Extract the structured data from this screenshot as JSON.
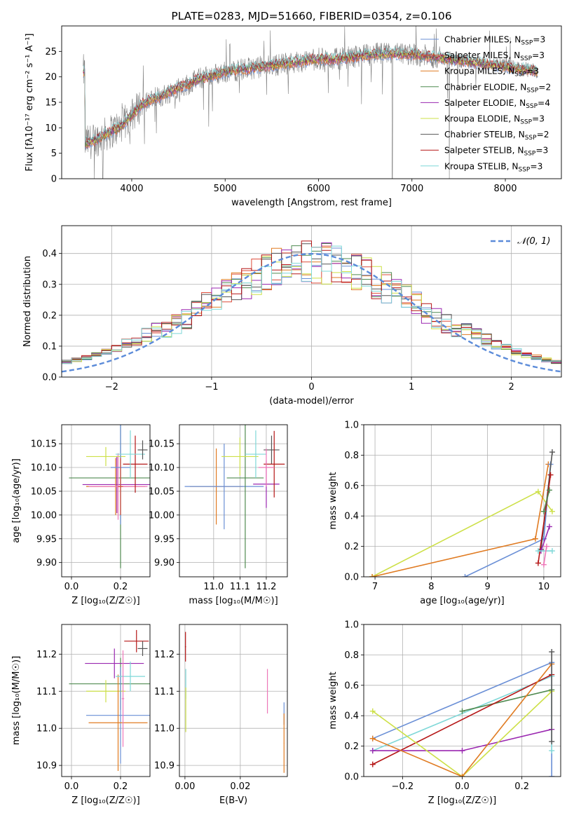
{
  "colors": {
    "chabrier_miles": "#6a8fd6",
    "salpeter_miles": "#dd4b39",
    "kroupa_miles": "#e07b22",
    "chabrier_elodie": "#4f8a50",
    "salpeter_elodie": "#9a27b0",
    "kroupa_elodie": "#cde048",
    "chabrier_stelib": "#555555",
    "salpeter_stelib": "#b51616",
    "kroupa_stelib": "#7fd8d8",
    "gaussian": "#5b8bd9",
    "pink": "#ee77b8",
    "grid": "#b0b0b0",
    "observed_spectrum": "#808080"
  },
  "chart_data": [
    {
      "id": "spectrum",
      "type": "line",
      "title": "PLATE=0283, MJD=51660, FIBERID=0354, z=0.106",
      "xlabel": "wavelength [Angstrom, rest frame]",
      "ylabel": "Flux [fλ10⁻¹⁷ erg cm⁻² s⁻¹ A⁻¹]",
      "xlim": [
        3250,
        8600
      ],
      "ylim": [
        0,
        30
      ],
      "xticks": [
        "4000",
        "5000",
        "6000",
        "7000",
        "8000"
      ],
      "yticks": [
        "0",
        "5",
        "10",
        "15",
        "20",
        "25"
      ],
      "grid": false,
      "legend_position": "right",
      "legend": [
        {
          "label": "Chabrier MILES, N",
          "sub": "SSP",
          "suffix": "=3",
          "color_key": "chabrier_miles"
        },
        {
          "label": "Salpeter MILES, N",
          "sub": "SSP",
          "suffix": "=3",
          "color_key": "salpeter_miles"
        },
        {
          "label": "Kroupa MILES, N",
          "sub": "SSP",
          "suffix": "=3",
          "color_key": "kroupa_miles"
        },
        {
          "label": "Chabrier ELODIE, N",
          "sub": "SSP",
          "suffix": "=2",
          "color_key": "chabrier_elodie"
        },
        {
          "label": "Salpeter ELODIE, N",
          "sub": "SSP",
          "suffix": "=4",
          "color_key": "salpeter_elodie"
        },
        {
          "label": "Kroupa ELODIE, N",
          "sub": "SSP",
          "suffix": "=3",
          "color_key": "kroupa_elodie"
        },
        {
          "label": "Chabrier STELIB, N",
          "sub": "SSP",
          "suffix": "=2",
          "color_key": "chabrier_stelib"
        },
        {
          "label": "Salpeter STELIB, N",
          "sub": "SSP",
          "suffix": "=3",
          "color_key": "salpeter_stelib"
        },
        {
          "label": "Kroupa STELIB, N",
          "sub": "SSP",
          "suffix": "=3",
          "color_key": "kroupa_stelib"
        }
      ],
      "continuum": {
        "x": [
          3500,
          3600,
          3700,
          3800,
          3900,
          4000,
          4100,
          4200,
          4300,
          4400,
          4500,
          4600,
          4700,
          4800,
          4900,
          5000,
          5200,
          5400,
          5600,
          5800,
          6000,
          6200,
          6400,
          6600,
          6800,
          7000,
          7200,
          7400,
          7600,
          7800,
          8000,
          8200,
          8350
        ],
        "y": [
          7.0,
          7.5,
          8.5,
          9.5,
          10.5,
          12.5,
          14.5,
          15.5,
          16.0,
          17.0,
          18.0,
          18.5,
          19.5,
          20.0,
          20.5,
          21.0,
          21.5,
          22.0,
          22.5,
          23.0,
          23.5,
          23.5,
          24.0,
          24.5,
          24.5,
          24.5,
          24.0,
          23.5,
          23.0,
          22.5,
          22.0,
          21.5,
          21.0
        ]
      },
      "dips": [
        {
          "x": 3600,
          "y": 0
        },
        {
          "x": 3690,
          "y": 0
        },
        {
          "x": 6790,
          "y": 0
        },
        {
          "x": 7400,
          "y": 0
        }
      ]
    },
    {
      "id": "residuals",
      "type": "histogram",
      "xlabel": "(data-model)/error",
      "ylabel": "Normed distribution",
      "xlim": [
        -2.5,
        2.5
      ],
      "ylim": [
        0,
        0.49
      ],
      "xticks": [
        "−2",
        "−1",
        "0",
        "1",
        "2"
      ],
      "yticks": [
        "0.0",
        "0.1",
        "0.2",
        "0.3",
        "0.4"
      ],
      "grid": true,
      "legend_position": "top-right",
      "legend": [
        {
          "label": "𝒩(0, 1)",
          "color_key": "gaussian",
          "style": "dashed"
        }
      ],
      "bin_width": 0.1
    },
    {
      "id": "age_vs_Z",
      "type": "errorbar",
      "xlabel": "Z [log₁₀(Z/Z☉)]",
      "ylabel": "age  [log₁₀(age/yr)]",
      "xlim": [
        -0.04,
        0.32
      ],
      "ylim": [
        9.87,
        10.19
      ],
      "xticks": [
        "0.0",
        "0.2"
      ],
      "yticks": [
        "9.90",
        "9.95",
        "10.00",
        "10.05",
        "10.10",
        "10.15"
      ],
      "grid": true
    },
    {
      "id": "age_vs_mass",
      "type": "errorbar",
      "xlabel": "mass [log₁₀(M/M☉)]",
      "ylabel": "",
      "xlim": [
        10.87,
        11.28
      ],
      "ylim": [
        9.87,
        10.19
      ],
      "xticks": [
        "11.0",
        "11.1",
        "11.2"
      ],
      "yticks": [
        "9.90",
        "9.95",
        "10.00",
        "10.05",
        "10.10",
        "10.15"
      ],
      "grid": true
    },
    {
      "id": "massweight_vs_age",
      "type": "line",
      "xlabel": "age  [log₁₀(age/yr)]",
      "ylabel": "mass weight",
      "xlim": [
        6.8,
        10.3
      ],
      "ylim": [
        0,
        1
      ],
      "xticks": [
        "7",
        "8",
        "9",
        "10"
      ],
      "yticks": [
        "0.0",
        "0.2",
        "0.4",
        "0.6",
        "0.8",
        "1.0"
      ],
      "grid": true
    },
    {
      "id": "mass_vs_Z",
      "type": "errorbar",
      "xlabel": "Z [log₁₀(Z/Z☉)]",
      "ylabel": "mass [log₁₀(M/M☉)]",
      "xlim": [
        -0.04,
        0.32
      ],
      "ylim": [
        10.87,
        11.28
      ],
      "xticks": [
        "0.0",
        "0.2"
      ],
      "yticks": [
        "10.9",
        "11.0",
        "11.1",
        "11.2"
      ],
      "grid": true
    },
    {
      "id": "mass_vs_EBV",
      "type": "errorbar",
      "xlabel": "E(B-V)",
      "ylabel": "",
      "xlim": [
        -0.002,
        0.037
      ],
      "ylim": [
        10.87,
        11.28
      ],
      "xticks": [
        "0.00",
        "0.02"
      ],
      "yticks": [
        "10.9",
        "11.0",
        "11.1",
        "11.2"
      ],
      "grid": true
    },
    {
      "id": "massweight_vs_Z",
      "type": "line",
      "xlabel": "Z [log₁₀(Z/Z☉)]",
      "ylabel": "mass weight",
      "xlim": [
        -0.33,
        0.33
      ],
      "ylim": [
        0,
        1
      ],
      "xticks": [
        "−0.2",
        "0.0",
        "0.2"
      ],
      "yticks": [
        "0.0",
        "0.2",
        "0.4",
        "0.6",
        "0.8",
        "1.0"
      ],
      "grid": true
    }
  ]
}
